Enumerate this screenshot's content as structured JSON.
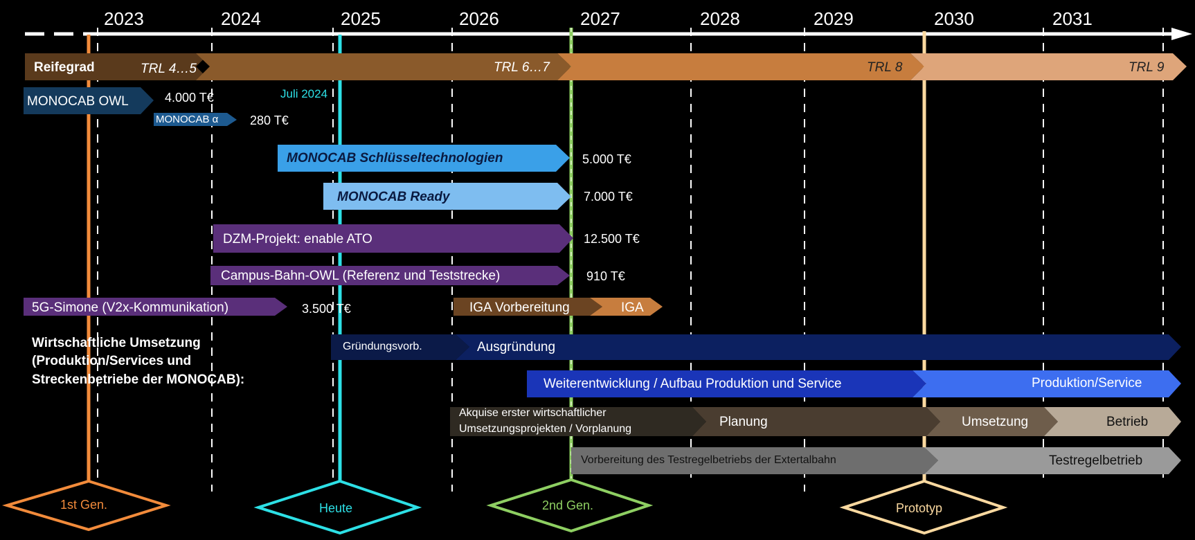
{
  "years": [
    "2023",
    "2024",
    "2025",
    "2026",
    "2027",
    "2028",
    "2029",
    "2030",
    "2031"
  ],
  "reifegrad": {
    "label": "Reifegrad",
    "trl45": "TRL 4…5",
    "trl67": "TRL 6…7",
    "trl8": "TRL 8",
    "trl9": "TRL 9"
  },
  "projects": {
    "owl": {
      "label": "MONOCAB OWL",
      "amount": "4.000 T€"
    },
    "alpha": {
      "label": "MONOCAB α",
      "amount": "280 T€"
    },
    "juli": "Juli 2024",
    "schluessel": {
      "label": "MONOCAB Schlüsseltechnologien",
      "amount": "5.000 T€"
    },
    "ready": {
      "label": "MONOCAB Ready",
      "amount": "7.000 T€"
    },
    "dzm": {
      "label": "DZM-Projekt: enable ATO",
      "amount": "12.500 T€"
    },
    "campus": {
      "label": "Campus-Bahn-OWL (Referenz und Teststrecke)",
      "amount": "910 T€"
    },
    "simone": {
      "label": "5G-Simone (V2x-Kommunikation)",
      "amount": "3.500 T€"
    },
    "iga_vor": "IGA Vorbereitung",
    "iga": "IGA"
  },
  "wirtschaft": {
    "line1": "Wirtschaftliche Umsetzung",
    "line2": "(Produktion/Services und",
    "line3": "Streckenbetriebe der MONOCAB):",
    "gruendungsvorb": "Gründungsvorb.",
    "ausgruendung": "Ausgründung",
    "weiterentwicklung": "Weiterentwicklung / Aufbau Produktion und Service",
    "produktion": "Produktion/Service",
    "akquise1": "Akquise erster wirtschaftlicher",
    "akquise2": "Umsetzungsprojekten / Vorplanung",
    "planung": "Planung",
    "umsetzung": "Umsetzung",
    "betrieb": "Betrieb",
    "vorbereitung": "Vorbereitung des Testregelbetriebs der Extertalbahn",
    "testregel": "Testregelbetrieb"
  },
  "milestones": {
    "gen1": "1st Gen.",
    "heute": "Heute",
    "gen2": "2nd Gen.",
    "prototyp": "Prototyp"
  },
  "colors": {
    "gen1": "#f28b3b",
    "heute": "#2de0e6",
    "gen2": "#8ecf62",
    "prototyp": "#fbd9a0",
    "trl_dark": "#5a3a1c",
    "trl_mid": "#8a5a2b",
    "trl8": "#c77d3e",
    "trl9": "#dea57a",
    "owl": "#143a5c",
    "schluessel": "#3aa0e8",
    "ready": "#7ebdf0",
    "purple": "#5a2f7a",
    "navy": "#0c2060",
    "blue": "#1a35b8",
    "blue_light": "#3d6ef0"
  }
}
